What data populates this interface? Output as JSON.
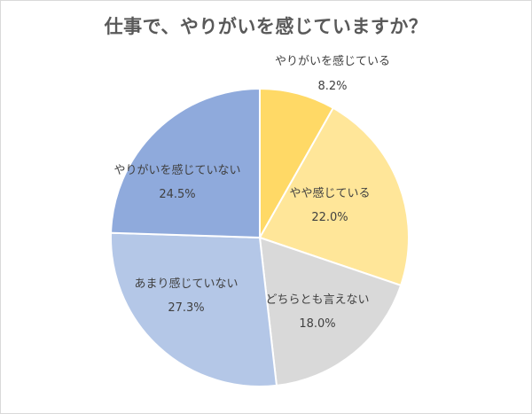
{
  "chart_data": {
    "type": "pie",
    "title": "仕事で、やりがいを感じていますか？",
    "slices": [
      {
        "label": "やりがいを感じている",
        "value": 8.2,
        "value_label": "8.2%",
        "color": "#ffd966"
      },
      {
        "label": "やや感じている",
        "value": 22.0,
        "value_label": "22.0%",
        "color": "#ffe699"
      },
      {
        "label": "どちらとも言えない",
        "value": 18.0,
        "value_label": "18.0%",
        "color": "#d9d9d9"
      },
      {
        "label": "あまり感じていない",
        "value": 27.3,
        "value_label": "27.3%",
        "color": "#b4c7e7"
      },
      {
        "label": "やりがいを感じていない",
        "value": 24.5,
        "value_label": "24.5%",
        "color": "#8faadc"
      }
    ],
    "start_angle": "12 o'clock",
    "direction": "clockwise",
    "legend": "none"
  }
}
